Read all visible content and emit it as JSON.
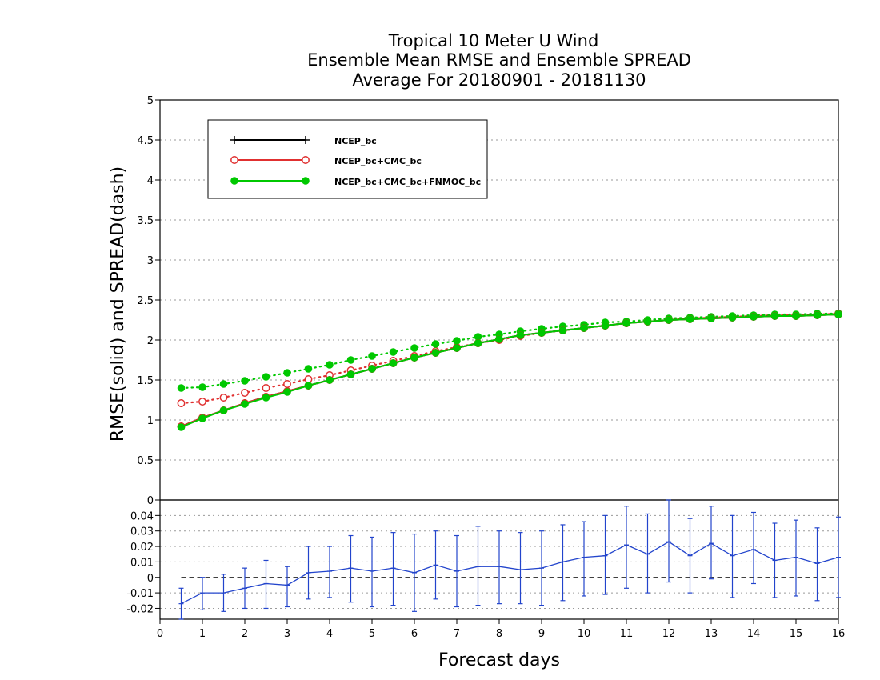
{
  "chart_data": [
    {
      "type": "line",
      "title": [
        "Tropical 10 Meter U Wind",
        "Ensemble Mean RMSE and Ensemble SPREAD",
        "Average For 20180901 - 20181130"
      ],
      "ylabel": "RMSE(solid) and SPREAD(dash)",
      "ylim": [
        0,
        5
      ],
      "yticks": [
        "0",
        "0.5",
        "1",
        "1.5",
        "2",
        "2.5",
        "3",
        "3.5",
        "4",
        "4.5",
        "5"
      ],
      "grid": true,
      "legend": {
        "placement": "top-left",
        "entries": [
          "NCEP_bc",
          "NCEP_bc+CMC_bc",
          "NCEP_bc+CMC_bc+FNMOC_bc"
        ]
      },
      "x": [
        0.5,
        1,
        1.5,
        2,
        2.5,
        3,
        3.5,
        4,
        4.5,
        5,
        5.5,
        6,
        6.5,
        7,
        7.5,
        8,
        8.5,
        9,
        9.5,
        10,
        10.5,
        11,
        11.5,
        12,
        12.5,
        13,
        13.5,
        14,
        14.5,
        15,
        15.5,
        16
      ],
      "series": [
        {
          "name": "NCEP_bc",
          "kind": "rmse",
          "color": "#000000",
          "marker": "plus",
          "values": [
            0.92,
            1.03,
            1.12,
            1.21,
            1.29,
            1.36,
            1.43,
            1.5,
            1.57,
            1.64,
            1.71,
            1.78,
            1.84,
            1.9,
            1.96,
            2.01,
            2.06,
            2.09,
            2.12,
            2.15,
            2.18,
            2.21,
            2.23,
            2.25,
            2.26,
            2.27,
            2.28,
            2.29,
            2.3,
            2.3,
            2.31,
            2.32
          ]
        },
        {
          "name": "NCEP_bc+CMC_bc",
          "kind": "rmse",
          "color": "#e03030",
          "marker": "open-circle",
          "values": [
            0.92,
            1.03,
            1.12,
            1.21,
            1.29,
            1.36,
            1.43,
            1.5,
            1.57,
            1.64,
            1.71,
            1.78,
            1.84,
            1.9,
            1.96,
            2.01,
            2.06,
            2.09,
            2.12,
            2.15,
            2.18,
            2.21,
            2.23,
            2.25,
            2.26,
            2.27,
            2.28,
            2.29,
            2.3,
            2.3,
            2.31,
            2.32
          ]
        },
        {
          "name": "NCEP_bc+CMC_bc+FNMOC_bc",
          "kind": "rmse",
          "color": "#00c800",
          "marker": "filled-circle",
          "values": [
            0.91,
            1.02,
            1.12,
            1.2,
            1.28,
            1.35,
            1.43,
            1.5,
            1.57,
            1.64,
            1.71,
            1.78,
            1.84,
            1.9,
            1.96,
            2.01,
            2.06,
            2.09,
            2.12,
            2.15,
            2.18,
            2.21,
            2.23,
            2.25,
            2.26,
            2.27,
            2.28,
            2.29,
            2.3,
            2.3,
            2.31,
            2.32
          ]
        },
        {
          "name": "NCEP_bc+CMC_bc",
          "kind": "spread",
          "color": "#e03030",
          "marker": "open-circle",
          "values": [
            1.21,
            1.23,
            1.28,
            1.34,
            1.4,
            1.45,
            1.51,
            1.56,
            1.62,
            1.68,
            1.74,
            1.8,
            1.86,
            1.91,
            1.96,
            2.0,
            2.05,
            2.09,
            2.12,
            2.15,
            2.18,
            2.21,
            2.23,
            2.25,
            2.27,
            2.28,
            2.29,
            2.3,
            2.31,
            2.31,
            2.32,
            2.33
          ]
        },
        {
          "name": "NCEP_bc+CMC_bc+FNMOC_bc",
          "kind": "spread",
          "color": "#00c800",
          "marker": "filled-circle",
          "values": [
            1.4,
            1.41,
            1.45,
            1.49,
            1.54,
            1.59,
            1.64,
            1.69,
            1.75,
            1.8,
            1.85,
            1.9,
            1.95,
            1.99,
            2.04,
            2.07,
            2.11,
            2.14,
            2.17,
            2.19,
            2.22,
            2.23,
            2.25,
            2.27,
            2.28,
            2.29,
            2.3,
            2.31,
            2.32,
            2.32,
            2.33,
            2.33
          ]
        }
      ]
    },
    {
      "type": "line",
      "xlabel": "Forecast days",
      "xlim": [
        0,
        16
      ],
      "xticks": [
        "0",
        "1",
        "2",
        "3",
        "4",
        "5",
        "6",
        "7",
        "8",
        "9",
        "10",
        "11",
        "12",
        "13",
        "14",
        "15",
        "16"
      ],
      "ylim": [
        -0.027,
        0.05
      ],
      "yticks": [
        "0.04",
        "0.03",
        "0.02",
        "0.01",
        "0",
        "-0.01",
        "-0.02"
      ],
      "top_label": "0",
      "grid": true,
      "reference_line": 0,
      "color": "#2244cc",
      "x": [
        0.5,
        1,
        1.5,
        2,
        2.5,
        3,
        3.5,
        4,
        4.5,
        5,
        5.5,
        6,
        6.5,
        7,
        7.5,
        8,
        8.5,
        9,
        9.5,
        10,
        10.5,
        11,
        11.5,
        12,
        12.5,
        13,
        13.5,
        14,
        14.5,
        15,
        15.5,
        16
      ],
      "values": [
        -0.017,
        -0.01,
        -0.01,
        -0.007,
        -0.004,
        -0.005,
        0.003,
        0.004,
        0.006,
        0.004,
        0.006,
        0.003,
        0.008,
        0.004,
        0.007,
        0.007,
        0.005,
        0.006,
        0.01,
        0.013,
        0.014,
        0.021,
        0.015,
        0.023,
        0.014,
        0.022,
        0.014,
        0.018,
        0.011,
        0.013,
        0.009,
        0.013
      ],
      "error_low": [
        -0.027,
        -0.021,
        -0.022,
        -0.02,
        -0.02,
        -0.019,
        -0.014,
        -0.013,
        -0.016,
        -0.019,
        -0.018,
        -0.022,
        -0.014,
        -0.019,
        -0.018,
        -0.017,
        -0.017,
        -0.018,
        -0.015,
        -0.012,
        -0.011,
        -0.007,
        -0.01,
        -0.003,
        -0.01,
        -0.001,
        -0.013,
        -0.004,
        -0.013,
        -0.012,
        -0.015,
        -0.013
      ],
      "error_high": [
        -0.007,
        0.0,
        0.002,
        0.006,
        0.011,
        0.007,
        0.02,
        0.02,
        0.027,
        0.026,
        0.029,
        0.028,
        0.03,
        0.027,
        0.033,
        0.03,
        0.029,
        0.03,
        0.034,
        0.036,
        0.04,
        0.046,
        0.041,
        0.05,
        0.038,
        0.046,
        0.04,
        0.042,
        0.035,
        0.037,
        0.032,
        0.039
      ]
    }
  ]
}
